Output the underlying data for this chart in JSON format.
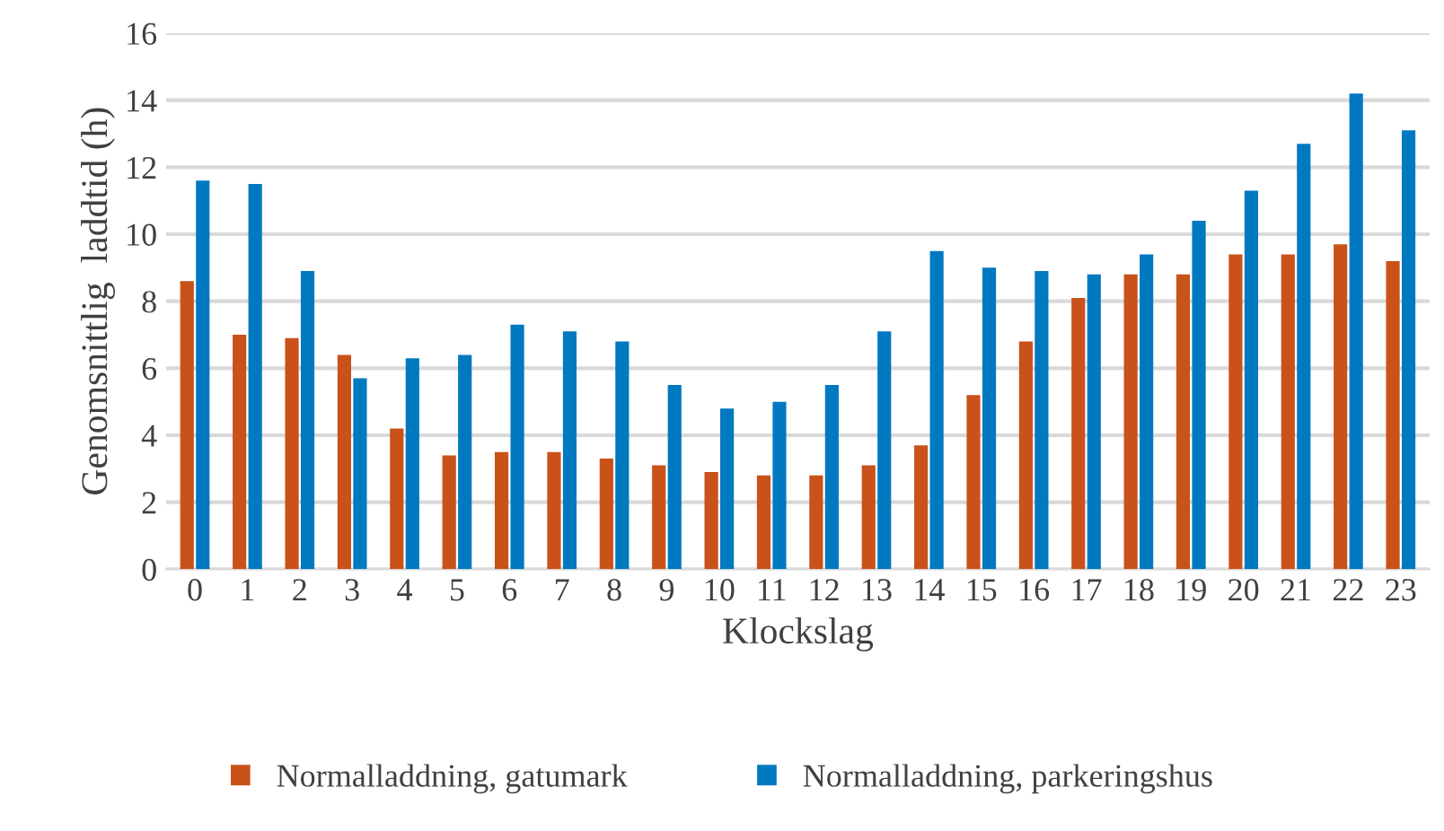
{
  "chart_data": {
    "type": "bar",
    "xlabel": "Klockslag",
    "ylabel": "Genomsnittlig  laddtid (h)",
    "categories": [
      "0",
      "1",
      "2",
      "3",
      "4",
      "5",
      "6",
      "7",
      "8",
      "9",
      "10",
      "11",
      "12",
      "13",
      "14",
      "15",
      "16",
      "17",
      "18",
      "19",
      "20",
      "21",
      "22",
      "23"
    ],
    "series": [
      {
        "name": "Normalladdning, gatumark",
        "color": "#c9521a",
        "values": [
          8.6,
          7.0,
          6.9,
          6.4,
          4.2,
          3.4,
          3.5,
          3.5,
          3.3,
          3.1,
          2.9,
          2.8,
          2.8,
          3.1,
          3.7,
          5.2,
          6.8,
          8.1,
          8.8,
          8.8,
          9.4,
          9.4,
          9.7,
          9.2
        ]
      },
      {
        "name": "Normalladdning, parkeringshus",
        "color": "#0079c1",
        "values": [
          11.6,
          11.5,
          8.9,
          5.7,
          6.3,
          6.4,
          7.3,
          7.1,
          6.8,
          5.5,
          4.8,
          5.0,
          5.5,
          7.1,
          9.5,
          9.0,
          8.9,
          8.8,
          9.4,
          10.4,
          11.3,
          12.7,
          14.2,
          13.1
        ]
      }
    ],
    "ylim": [
      0,
      16
    ],
    "yticks": [
      0,
      2,
      4,
      6,
      8,
      10,
      12,
      14,
      16
    ],
    "grid": "y",
    "legend": "bottom"
  }
}
